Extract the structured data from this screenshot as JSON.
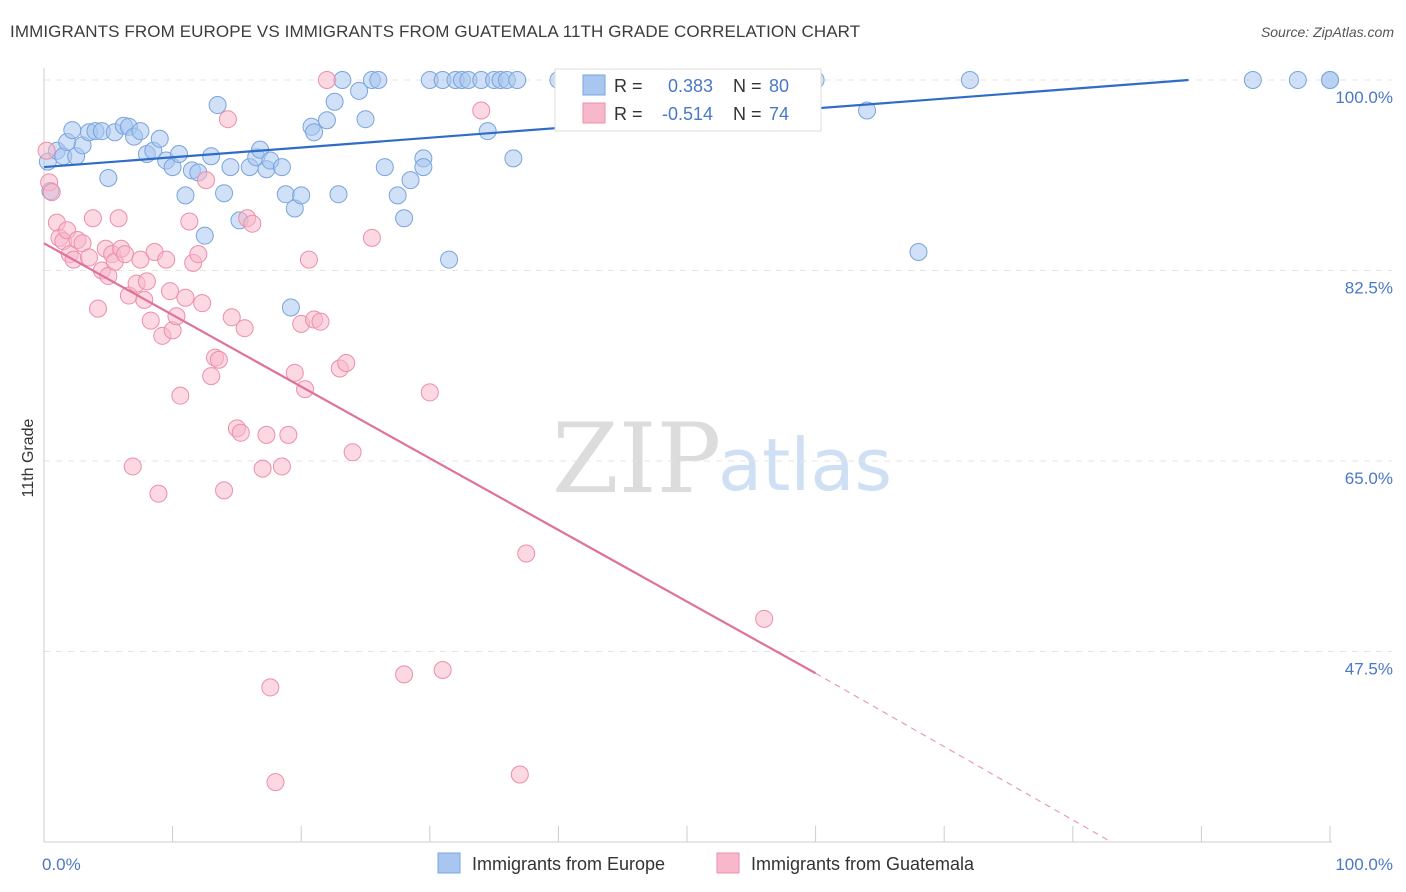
{
  "chart_data": {
    "type": "scatter",
    "title": "IMMIGRANTS FROM EUROPE VS IMMIGRANTS FROM GUATEMALA 11TH GRADE CORRELATION CHART",
    "source": "Source: ZipAtlas.com",
    "ylabel": "11th Grade",
    "xlabel": "",
    "xlim": [
      0,
      100
    ],
    "ylim": [
      30,
      100
    ],
    "y_ticks": [
      {
        "value": 100,
        "label": "100.0%"
      },
      {
        "value": 82.5,
        "label": "82.5%"
      },
      {
        "value": 65,
        "label": "65.0%"
      },
      {
        "value": 47.5,
        "label": "47.5%"
      }
    ],
    "x_ticks": [
      {
        "value": 0,
        "label": "0.0%"
      },
      {
        "value": 100,
        "label": "100.0%"
      }
    ],
    "grid": true,
    "legend_position": "bottom",
    "watermark": {
      "zip": "ZIP",
      "atlas": "atlas"
    },
    "stats": [
      {
        "r_label": "R =",
        "r": "0.383",
        "n_label": "N =",
        "n": "80"
      },
      {
        "r_label": "R =",
        "r": "-0.514",
        "n_label": "N =",
        "n": "74"
      }
    ],
    "series": [
      {
        "name": "Immigrants from Europe",
        "color": "#a8c6f0",
        "stroke": "#7aa4dc",
        "line_color": "#2f6cc8",
        "trend": {
          "x0": 0,
          "y0": 92.0,
          "x1": 89,
          "y1": 100.0,
          "dash_to": null
        },
        "points": [
          [
            0.3,
            92.5
          ],
          [
            0.5,
            89.8
          ],
          [
            1.0,
            93.5
          ],
          [
            1.5,
            93.0
          ],
          [
            1.8,
            94.3
          ],
          [
            2.2,
            95.4
          ],
          [
            2.5,
            93.0
          ],
          [
            3.0,
            94.0
          ],
          [
            3.5,
            95.2
          ],
          [
            4.0,
            95.3
          ],
          [
            4.5,
            95.3
          ],
          [
            5.0,
            91.0
          ],
          [
            5.5,
            95.2
          ],
          [
            6.2,
            95.8
          ],
          [
            6.6,
            95.7
          ],
          [
            7.0,
            94.8
          ],
          [
            7.5,
            95.3
          ],
          [
            8.0,
            93.2
          ],
          [
            8.5,
            93.5
          ],
          [
            9.0,
            94.6
          ],
          [
            9.5,
            92.6
          ],
          [
            10.0,
            92.0
          ],
          [
            10.5,
            93.2
          ],
          [
            11.0,
            89.4
          ],
          [
            11.5,
            91.7
          ],
          [
            12.0,
            91.5
          ],
          [
            12.5,
            85.7
          ],
          [
            13.0,
            93.0
          ],
          [
            13.5,
            97.7
          ],
          [
            14.0,
            89.6
          ],
          [
            14.5,
            92.0
          ],
          [
            15.2,
            87.1
          ],
          [
            16.0,
            92.0
          ],
          [
            16.5,
            92.9
          ],
          [
            16.8,
            93.6
          ],
          [
            17.3,
            91.8
          ],
          [
            17.6,
            92.6
          ],
          [
            18.5,
            92.0
          ],
          [
            18.8,
            89.5
          ],
          [
            19.2,
            79.1
          ],
          [
            19.5,
            88.2
          ],
          [
            20.0,
            89.4
          ],
          [
            20.8,
            95.7
          ],
          [
            21.0,
            95.2
          ],
          [
            22.0,
            96.3
          ],
          [
            22.6,
            98.0
          ],
          [
            22.9,
            89.5
          ],
          [
            23.2,
            100.0
          ],
          [
            24.5,
            99.0
          ],
          [
            25.0,
            96.4
          ],
          [
            25.5,
            100.0
          ],
          [
            26.0,
            100.0
          ],
          [
            26.5,
            92.0
          ],
          [
            27.5,
            89.4
          ],
          [
            28.0,
            87.3
          ],
          [
            28.5,
            90.8
          ],
          [
            29.5,
            92.8
          ],
          [
            29.5,
            92.0
          ],
          [
            30.0,
            100.0
          ],
          [
            31.0,
            100.0
          ],
          [
            31.5,
            83.5
          ],
          [
            32.0,
            100.0
          ],
          [
            32.5,
            100.0
          ],
          [
            33.0,
            100.0
          ],
          [
            34.0,
            100.0
          ],
          [
            34.5,
            95.3
          ],
          [
            35.0,
            100.0
          ],
          [
            35.5,
            100.0
          ],
          [
            36.0,
            100.0
          ],
          [
            36.8,
            100.0
          ],
          [
            36.5,
            92.8
          ],
          [
            40.0,
            100.0
          ],
          [
            42.0,
            100.0
          ],
          [
            60.0,
            100.0
          ],
          [
            64.0,
            97.2
          ],
          [
            68.0,
            84.2
          ],
          [
            72.0,
            100.0
          ],
          [
            94.0,
            100.0
          ],
          [
            97.5,
            100.0
          ],
          [
            100.0,
            100.0
          ],
          [
            100.0,
            100.0
          ]
        ]
      },
      {
        "name": "Immigrants from Guatemala",
        "color": "#f7b8cb",
        "stroke": "#ec8eaa",
        "line_color": "#e0719a",
        "trend": {
          "x0": 0,
          "y0": 85.0,
          "x1": 60,
          "y1": 45.5,
          "dash_to": {
            "x": 83,
            "y": 30.0
          }
        },
        "points": [
          [
            0.2,
            93.5
          ],
          [
            0.4,
            90.6
          ],
          [
            0.6,
            89.7
          ],
          [
            1.0,
            86.9
          ],
          [
            1.2,
            85.5
          ],
          [
            1.5,
            85.2
          ],
          [
            1.8,
            86.2
          ],
          [
            2.0,
            84.0
          ],
          [
            2.3,
            83.5
          ],
          [
            2.6,
            85.3
          ],
          [
            3.0,
            85.0
          ],
          [
            3.5,
            83.7
          ],
          [
            3.8,
            87.3
          ],
          [
            4.2,
            79.0
          ],
          [
            4.5,
            82.5
          ],
          [
            4.8,
            84.5
          ],
          [
            5.0,
            82.0
          ],
          [
            5.3,
            84.0
          ],
          [
            5.5,
            83.3
          ],
          [
            5.8,
            87.3
          ],
          [
            6.0,
            84.5
          ],
          [
            6.3,
            84.0
          ],
          [
            6.6,
            80.2
          ],
          [
            6.9,
            64.5
          ],
          [
            7.2,
            81.3
          ],
          [
            7.5,
            83.5
          ],
          [
            7.8,
            79.8
          ],
          [
            8.0,
            81.5
          ],
          [
            8.3,
            77.9
          ],
          [
            8.6,
            84.2
          ],
          [
            8.9,
            62.0
          ],
          [
            9.2,
            76.5
          ],
          [
            9.5,
            83.5
          ],
          [
            9.8,
            80.6
          ],
          [
            10.0,
            77.0
          ],
          [
            10.3,
            78.3
          ],
          [
            10.6,
            71.0
          ],
          [
            11.0,
            80.0
          ],
          [
            11.3,
            87.0
          ],
          [
            11.6,
            83.2
          ],
          [
            12.0,
            84.0
          ],
          [
            12.3,
            79.5
          ],
          [
            12.6,
            90.8
          ],
          [
            13.0,
            72.8
          ],
          [
            13.3,
            74.5
          ],
          [
            13.6,
            74.3
          ],
          [
            14.0,
            62.3
          ],
          [
            14.3,
            96.4
          ],
          [
            14.6,
            78.2
          ],
          [
            15.0,
            68.0
          ],
          [
            15.3,
            67.6
          ],
          [
            15.6,
            77.2
          ],
          [
            15.8,
            87.3
          ],
          [
            16.2,
            86.8
          ],
          [
            17.0,
            64.3
          ],
          [
            17.3,
            67.4
          ],
          [
            17.6,
            44.2
          ],
          [
            18.0,
            35.5
          ],
          [
            18.5,
            64.5
          ],
          [
            19.0,
            67.4
          ],
          [
            19.5,
            73.1
          ],
          [
            20.0,
            77.6
          ],
          [
            20.3,
            71.6
          ],
          [
            20.6,
            83.5
          ],
          [
            21.0,
            78.0
          ],
          [
            21.5,
            77.8
          ],
          [
            22.0,
            100.0
          ],
          [
            23.0,
            73.5
          ],
          [
            23.5,
            74.0
          ],
          [
            24.0,
            65.8
          ],
          [
            25.5,
            85.5
          ],
          [
            28.0,
            45.4
          ],
          [
            30.0,
            71.3
          ],
          [
            31.0,
            45.8
          ],
          [
            34.0,
            97.2
          ],
          [
            37.0,
            36.2
          ],
          [
            37.5,
            56.5
          ],
          [
            56.0,
            50.5
          ]
        ]
      }
    ]
  },
  "legend": {
    "items": [
      {
        "label": "Immigrants from Europe"
      },
      {
        "label": "Immigrants from Guatemala"
      }
    ]
  }
}
